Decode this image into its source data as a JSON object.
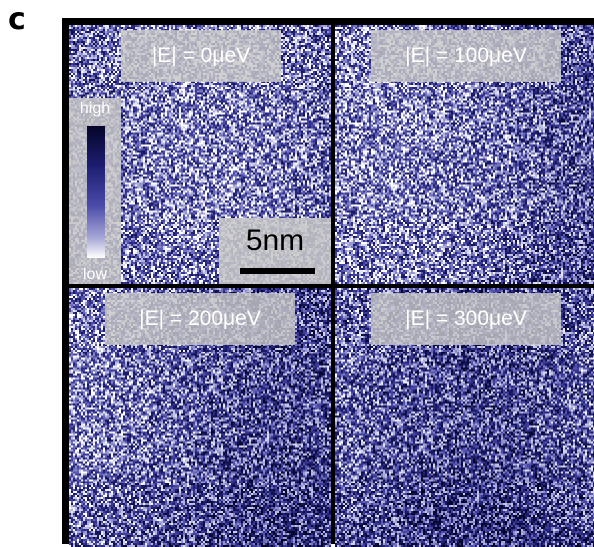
{
  "figure": {
    "panel_letter": "c",
    "colorbar": {
      "high_label": "high",
      "low_label": "low",
      "colors": [
        "#05052a",
        "#1d1d70",
        "#4a4aa8",
        "#a8a8d8",
        "#ffffff"
      ]
    },
    "scalebar": {
      "label": "5nm"
    },
    "maps": [
      {
        "label": "|E| = 0μeV"
      },
      {
        "label": "|E| = 100μeV"
      },
      {
        "label": "|E| = 200μeV"
      },
      {
        "label": "|E| = 300μeV"
      }
    ]
  }
}
